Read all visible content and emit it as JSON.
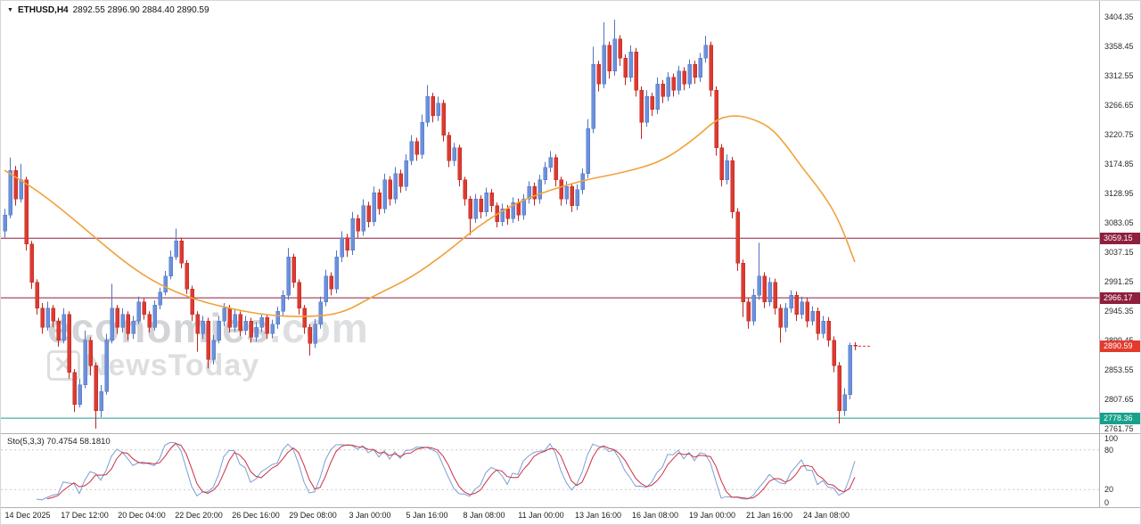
{
  "header": {
    "symbol": "ETHUSD,H4",
    "ohlc": "2892.55 2896.90 2884.40 2890.59"
  },
  "watermark": {
    "brand": "economies",
    "domain": ".com",
    "news": "NewsToday",
    "logo_glyph": "✕"
  },
  "indicator": {
    "name": "Sto(5,3,3)",
    "k_value": "70.4754",
    "d_value": "58.1810",
    "levels": [
      "100",
      "80",
      "20",
      "0"
    ]
  },
  "colors": {
    "up_candle": "#6b90dc",
    "up_border": "#4f74c0",
    "down_candle": "#dd3a30",
    "down_border": "#bd2620",
    "ma_line": "#f0a23c",
    "level_maroon": "#8e1f3d",
    "level_teal": "#17a18d",
    "current_price": "#e23b2e",
    "sto_main": "#7aa0d4",
    "sto_signal": "#cc2f44",
    "sto_level": "#c9c9c9"
  },
  "chart_data": [
    {
      "type": "candlestick",
      "title": "ETHUSD H4",
      "ylim": [
        2754.9,
        3429.4
      ],
      "grid": false,
      "y_tick_labels": [
        "3404.35",
        "3358.45",
        "3312.55",
        "3266.65",
        "3220.75",
        "3174.85",
        "3128.95",
        "3083.05",
        "3037.15",
        "2991.25",
        "2945.35",
        "2899.45",
        "2853.55",
        "2807.65",
        "2761.75"
      ],
      "x_tick_labels": [
        "14 Dec 2025",
        "17 Dec 12:00",
        "20 Dec 04:00",
        "22 Dec 20:00",
        "26 Dec 16:00",
        "29 Dec 08:00",
        "3 Jan 00:00",
        "5 Jan 16:00",
        "8 Jan 08:00",
        "11 Jan 00:00",
        "13 Jan 16:00",
        "16 Jan 08:00",
        "19 Jan 00:00",
        "21 Jan 16:00",
        "24 Jan 08:00"
      ],
      "price_markers": [
        {
          "label": "3059.15",
          "price": 3059.15,
          "style": "maroon"
        },
        {
          "label": "2966.17",
          "price": 2966.17,
          "style": "maroon"
        },
        {
          "label": "2890.59",
          "price": 2890.59,
          "style": "current"
        },
        {
          "label": "2778.36",
          "price": 2778.36,
          "style": "teal"
        }
      ],
      "ma_line": {
        "name": "moving-average",
        "points": [
          [
            0,
            3165
          ],
          [
            5,
            3140
          ],
          [
            10,
            3109
          ],
          [
            16,
            3067
          ],
          [
            23,
            3018
          ],
          [
            29,
            2986
          ],
          [
            36,
            2962
          ],
          [
            43,
            2948
          ],
          [
            49,
            2939
          ],
          [
            56,
            2936
          ],
          [
            63,
            2941
          ],
          [
            69,
            2969
          ],
          [
            76,
            2997
          ],
          [
            83,
            3039
          ],
          [
            89,
            3081
          ],
          [
            96,
            3116
          ],
          [
            103,
            3137
          ],
          [
            109,
            3151
          ],
          [
            116,
            3162
          ],
          [
            123,
            3179
          ],
          [
            129,
            3214
          ],
          [
            133,
            3244
          ],
          [
            136,
            3251
          ],
          [
            139,
            3248
          ],
          [
            143,
            3234
          ],
          [
            146,
            3206
          ],
          [
            149,
            3171
          ],
          [
            153,
            3129
          ],
          [
            156,
            3088
          ],
          [
            159,
            3022
          ]
        ]
      },
      "candles": [
        [
          3070,
          3105,
          3060,
          3095
        ],
        [
          3095,
          3185,
          3090,
          3165
        ],
        [
          3165,
          3172,
          3110,
          3120
        ],
        [
          3120,
          3175,
          3115,
          3150
        ],
        [
          3150,
          3155,
          3040,
          3050
        ],
        [
          3050,
          3055,
          2980,
          2990
        ],
        [
          2990,
          2995,
          2940,
          2950
        ],
        [
          2950,
          2958,
          2910,
          2920
        ],
        [
          2920,
          2960,
          2915,
          2950
        ],
        [
          2950,
          2955,
          2920,
          2930
        ],
        [
          2930,
          2935,
          2890,
          2900
        ],
        [
          2900,
          2950,
          2895,
          2940
        ],
        [
          2940,
          2945,
          2840,
          2850
        ],
        [
          2850,
          2855,
          2788,
          2800
        ],
        [
          2800,
          2840,
          2795,
          2830
        ],
        [
          2830,
          2915,
          2825,
          2900
        ],
        [
          2900,
          2905,
          2845,
          2860
        ],
        [
          2860,
          2865,
          2762,
          2790
        ],
        [
          2790,
          2830,
          2780,
          2820
        ],
        [
          2820,
          2910,
          2815,
          2900
        ],
        [
          2900,
          2988,
          2895,
          2950
        ],
        [
          2950,
          2955,
          2910,
          2920
        ],
        [
          2920,
          2950,
          2912,
          2940
        ],
        [
          2940,
          2945,
          2900,
          2910
        ],
        [
          2910,
          2938,
          2902,
          2930
        ],
        [
          2930,
          2968,
          2925,
          2960
        ],
        [
          2960,
          2965,
          2932,
          2940
        ],
        [
          2940,
          2945,
          2912,
          2920
        ],
        [
          2920,
          2962,
          2915,
          2955
        ],
        [
          2955,
          2982,
          2948,
          2975
        ],
        [
          2975,
          3008,
          2970,
          3000
        ],
        [
          3000,
          3040,
          2995,
          3030
        ],
        [
          3030,
          3074,
          3025,
          3055
        ],
        [
          3055,
          3060,
          3012,
          3020
        ],
        [
          3020,
          3025,
          2972,
          2980
        ],
        [
          2980,
          2985,
          2930,
          2940
        ],
        [
          2940,
          2945,
          2882,
          2910
        ],
        [
          2910,
          2938,
          2902,
          2930
        ],
        [
          2930,
          2935,
          2856,
          2870
        ],
        [
          2870,
          2908,
          2862,
          2900
        ],
        [
          2900,
          2938,
          2895,
          2930
        ],
        [
          2930,
          2958,
          2922,
          2950
        ],
        [
          2950,
          2955,
          2912,
          2920
        ],
        [
          2920,
          2948,
          2913,
          2940
        ],
        [
          2940,
          2945,
          2906,
          2915
        ],
        [
          2915,
          2938,
          2908,
          2930
        ],
        [
          2930,
          2935,
          2896,
          2905
        ],
        [
          2905,
          2928,
          2898,
          2920
        ],
        [
          2920,
          2942,
          2913,
          2935
        ],
        [
          2935,
          2940,
          2902,
          2910
        ],
        [
          2910,
          2932,
          2903,
          2925
        ],
        [
          2925,
          2952,
          2918,
          2945
        ],
        [
          2945,
          2978,
          2938,
          2970
        ],
        [
          2970,
          3044,
          2963,
          3030
        ],
        [
          3030,
          3035,
          2982,
          2990
        ],
        [
          2990,
          2995,
          2940,
          2950
        ],
        [
          2950,
          2955,
          2910,
          2920
        ],
        [
          2920,
          2925,
          2876,
          2895
        ],
        [
          2895,
          2933,
          2888,
          2925
        ],
        [
          2925,
          2968,
          2918,
          2960
        ],
        [
          2960,
          3010,
          2953,
          3000
        ],
        [
          3000,
          3006,
          2970,
          2980
        ],
        [
          2980,
          3040,
          2973,
          3030
        ],
        [
          3030,
          3070,
          3022,
          3060
        ],
        [
          3060,
          3066,
          3030,
          3040
        ],
        [
          3040,
          3100,
          3033,
          3090
        ],
        [
          3090,
          3096,
          3060,
          3070
        ],
        [
          3070,
          3120,
          3063,
          3110
        ],
        [
          3110,
          3116,
          3076,
          3085
        ],
        [
          3085,
          3140,
          3078,
          3130
        ],
        [
          3130,
          3136,
          3096,
          3105
        ],
        [
          3105,
          3160,
          3098,
          3150
        ],
        [
          3150,
          3156,
          3110,
          3120
        ],
        [
          3120,
          3170,
          3113,
          3160
        ],
        [
          3160,
          3166,
          3130,
          3140
        ],
        [
          3140,
          3190,
          3133,
          3180
        ],
        [
          3180,
          3220,
          3173,
          3210
        ],
        [
          3210,
          3216,
          3180,
          3190
        ],
        [
          3190,
          3252,
          3183,
          3240
        ],
        [
          3240,
          3298,
          3233,
          3280
        ],
        [
          3280,
          3286,
          3240,
          3250
        ],
        [
          3250,
          3280,
          3242,
          3270
        ],
        [
          3270,
          3275,
          3210,
          3220
        ],
        [
          3220,
          3225,
          3170,
          3180
        ],
        [
          3180,
          3208,
          3172,
          3200
        ],
        [
          3200,
          3205,
          3140,
          3150
        ],
        [
          3150,
          3155,
          3110,
          3120
        ],
        [
          3120,
          3125,
          3064,
          3090
        ],
        [
          3090,
          3128,
          3083,
          3120
        ],
        [
          3120,
          3126,
          3090,
          3100
        ],
        [
          3100,
          3138,
          3093,
          3130
        ],
        [
          3130,
          3136,
          3100,
          3110
        ],
        [
          3110,
          3115,
          3076,
          3085
        ],
        [
          3085,
          3113,
          3078,
          3105
        ],
        [
          3105,
          3111,
          3080,
          3090
        ],
        [
          3090,
          3123,
          3083,
          3115
        ],
        [
          3115,
          3121,
          3086,
          3095
        ],
        [
          3095,
          3128,
          3088,
          3120
        ],
        [
          3120,
          3148,
          3113,
          3140
        ],
        [
          3140,
          3146,
          3110,
          3120
        ],
        [
          3120,
          3158,
          3113,
          3150
        ],
        [
          3150,
          3178,
          3143,
          3170
        ],
        [
          3170,
          3195,
          3162,
          3185
        ],
        [
          3185,
          3190,
          3140,
          3150
        ],
        [
          3150,
          3155,
          3110,
          3120
        ],
        [
          3120,
          3148,
          3112,
          3140
        ],
        [
          3140,
          3145,
          3100,
          3110
        ],
        [
          3110,
          3143,
          3103,
          3135
        ],
        [
          3135,
          3168,
          3128,
          3160
        ],
        [
          3160,
          3245,
          3153,
          3230
        ],
        [
          3230,
          3358,
          3223,
          3330
        ],
        [
          3330,
          3336,
          3288,
          3300
        ],
        [
          3300,
          3396,
          3293,
          3360
        ],
        [
          3360,
          3366,
          3308,
          3320
        ],
        [
          3320,
          3400,
          3313,
          3370
        ],
        [
          3370,
          3376,
          3328,
          3340
        ],
        [
          3340,
          3346,
          3298,
          3310
        ],
        [
          3310,
          3360,
          3303,
          3350
        ],
        [
          3350,
          3356,
          3280,
          3290
        ],
        [
          3290,
          3296,
          3214,
          3240
        ],
        [
          3240,
          3290,
          3233,
          3280
        ],
        [
          3280,
          3286,
          3250,
          3260
        ],
        [
          3260,
          3310,
          3253,
          3300
        ],
        [
          3300,
          3306,
          3270,
          3280
        ],
        [
          3280,
          3318,
          3273,
          3310
        ],
        [
          3310,
          3316,
          3280,
          3290
        ],
        [
          3290,
          3328,
          3283,
          3320
        ],
        [
          3320,
          3326,
          3290,
          3300
        ],
        [
          3300,
          3338,
          3293,
          3330
        ],
        [
          3330,
          3336,
          3300,
          3310
        ],
        [
          3310,
          3348,
          3303,
          3340
        ],
        [
          3340,
          3375,
          3333,
          3360
        ],
        [
          3360,
          3366,
          3280,
          3290
        ],
        [
          3290,
          3296,
          3188,
          3200
        ],
        [
          3200,
          3206,
          3140,
          3150
        ],
        [
          3150,
          3190,
          3143,
          3180
        ],
        [
          3180,
          3186,
          3090,
          3100
        ],
        [
          3100,
          3106,
          3008,
          3020
        ],
        [
          3020,
          3026,
          2936,
          2960
        ],
        [
          2960,
          2966,
          2918,
          2930
        ],
        [
          2930,
          2980,
          2923,
          2970
        ],
        [
          2970,
          3052,
          2963,
          3000
        ],
        [
          3000,
          3006,
          2950,
          2960
        ],
        [
          2960,
          2998,
          2953,
          2990
        ],
        [
          2990,
          2996,
          2940,
          2950
        ],
        [
          2950,
          2956,
          2896,
          2920
        ],
        [
          2920,
          2958,
          2913,
          2950
        ],
        [
          2950,
          2978,
          2943,
          2970
        ],
        [
          2970,
          2976,
          2930,
          2940
        ],
        [
          2940,
          2968,
          2933,
          2960
        ],
        [
          2960,
          2966,
          2920,
          2930
        ],
        [
          2930,
          2953,
          2923,
          2945
        ],
        [
          2945,
          2951,
          2900,
          2910
        ],
        [
          2910,
          2938,
          2903,
          2930
        ],
        [
          2930,
          2936,
          2890,
          2900
        ],
        [
          2900,
          2906,
          2850,
          2860
        ],
        [
          2860,
          2866,
          2770,
          2790
        ],
        [
          2790,
          2825,
          2782,
          2815
        ],
        [
          2815,
          2896,
          2808,
          2892.55
        ],
        [
          2892.55,
          2896.9,
          2884.4,
          2890.59
        ]
      ]
    },
    {
      "type": "line",
      "title": "Stochastic Oscillator (5,3,3)",
      "ylim": [
        0,
        100
      ],
      "levels": [
        80,
        20
      ],
      "series": [
        {
          "name": "%K",
          "derived_from": "candles",
          "last_value": 70.4754
        },
        {
          "name": "%D",
          "derived_from": "candles",
          "last_value": 58.181
        }
      ]
    }
  ]
}
